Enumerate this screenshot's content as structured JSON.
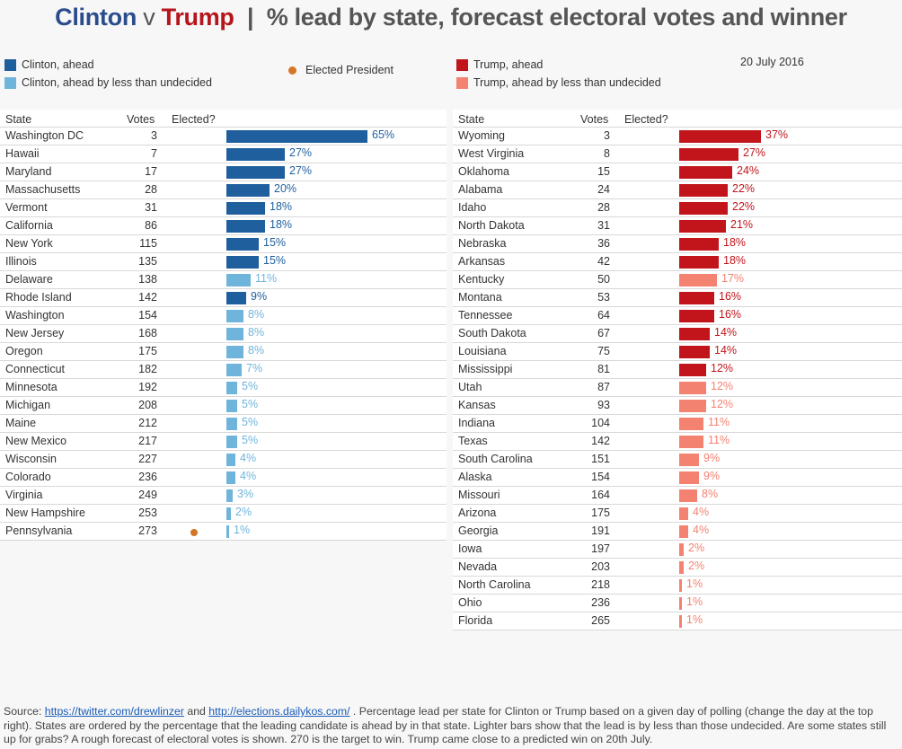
{
  "title": {
    "clinton": "Clinton",
    "v": " v ",
    "trump": "Trump",
    "rest": "  |  % lead by state, forecast electoral votes and winner"
  },
  "colors": {
    "clinton_ahead": "#1f5f9e",
    "clinton_light": "#6fb5db",
    "trump_ahead": "#c1151b",
    "trump_light": "#f48271",
    "elected": "#d47625"
  },
  "legend": {
    "clinton_ahead": "Clinton, ahead",
    "clinton_light": "Clinton, ahead by less than undecided",
    "elected": "Elected President",
    "trump_ahead": "Trump, ahead",
    "trump_light": "Trump, ahead by less than undecided"
  },
  "date": "20 July 2016",
  "headers": {
    "state": "State",
    "votes": "Votes",
    "elected": "Elected?"
  },
  "chart_data": [
    {
      "type": "bar",
      "title": "Clinton leads",
      "xlabel": "% lead",
      "series_color_key": "light = lead less than undecided",
      "rows": [
        {
          "state": "Washington DC",
          "votes": 3,
          "lead": 65,
          "light": false,
          "elected": false
        },
        {
          "state": "Hawaii",
          "votes": 7,
          "lead": 27,
          "light": false,
          "elected": false
        },
        {
          "state": "Maryland",
          "votes": 17,
          "lead": 27,
          "light": false,
          "elected": false
        },
        {
          "state": "Massachusetts",
          "votes": 28,
          "lead": 20,
          "light": false,
          "elected": false
        },
        {
          "state": "Vermont",
          "votes": 31,
          "lead": 18,
          "light": false,
          "elected": false
        },
        {
          "state": "California",
          "votes": 86,
          "lead": 18,
          "light": false,
          "elected": false
        },
        {
          "state": "New York",
          "votes": 115,
          "lead": 15,
          "light": false,
          "elected": false
        },
        {
          "state": "Illinois",
          "votes": 135,
          "lead": 15,
          "light": false,
          "elected": false
        },
        {
          "state": "Delaware",
          "votes": 138,
          "lead": 11,
          "light": true,
          "elected": false
        },
        {
          "state": "Rhode Island",
          "votes": 142,
          "lead": 9,
          "light": false,
          "elected": false
        },
        {
          "state": "Washington",
          "votes": 154,
          "lead": 8,
          "light": true,
          "elected": false
        },
        {
          "state": "New Jersey",
          "votes": 168,
          "lead": 8,
          "light": true,
          "elected": false
        },
        {
          "state": "Oregon",
          "votes": 175,
          "lead": 8,
          "light": true,
          "elected": false
        },
        {
          "state": "Connecticut",
          "votes": 182,
          "lead": 7,
          "light": true,
          "elected": false
        },
        {
          "state": "Minnesota",
          "votes": 192,
          "lead": 5,
          "light": true,
          "elected": false
        },
        {
          "state": "Michigan",
          "votes": 208,
          "lead": 5,
          "light": true,
          "elected": false
        },
        {
          "state": "Maine",
          "votes": 212,
          "lead": 5,
          "light": true,
          "elected": false
        },
        {
          "state": "New Mexico",
          "votes": 217,
          "lead": 5,
          "light": true,
          "elected": false
        },
        {
          "state": "Wisconsin",
          "votes": 227,
          "lead": 4,
          "light": true,
          "elected": false
        },
        {
          "state": "Colorado",
          "votes": 236,
          "lead": 4,
          "light": true,
          "elected": false
        },
        {
          "state": "Virginia",
          "votes": 249,
          "lead": 3,
          "light": true,
          "elected": false
        },
        {
          "state": "New Hampshire",
          "votes": 253,
          "lead": 2,
          "light": true,
          "elected": false
        },
        {
          "state": "Pennsylvania",
          "votes": 273,
          "lead": 1,
          "light": true,
          "elected": true
        }
      ]
    },
    {
      "type": "bar",
      "title": "Trump leads",
      "xlabel": "% lead",
      "rows": [
        {
          "state": "Wyoming",
          "votes": 3,
          "lead": 37,
          "light": false,
          "elected": false
        },
        {
          "state": "West Virginia",
          "votes": 8,
          "lead": 27,
          "light": false,
          "elected": false
        },
        {
          "state": "Oklahoma",
          "votes": 15,
          "lead": 24,
          "light": false,
          "elected": false
        },
        {
          "state": "Alabama",
          "votes": 24,
          "lead": 22,
          "light": false,
          "elected": false
        },
        {
          "state": "Idaho",
          "votes": 28,
          "lead": 22,
          "light": false,
          "elected": false
        },
        {
          "state": "North Dakota",
          "votes": 31,
          "lead": 21,
          "light": false,
          "elected": false
        },
        {
          "state": "Nebraska",
          "votes": 36,
          "lead": 18,
          "light": false,
          "elected": false
        },
        {
          "state": "Arkansas",
          "votes": 42,
          "lead": 18,
          "light": false,
          "elected": false
        },
        {
          "state": "Kentucky",
          "votes": 50,
          "lead": 17,
          "light": true,
          "elected": false
        },
        {
          "state": "Montana",
          "votes": 53,
          "lead": 16,
          "light": false,
          "elected": false
        },
        {
          "state": "Tennessee",
          "votes": 64,
          "lead": 16,
          "light": false,
          "elected": false
        },
        {
          "state": "South Dakota",
          "votes": 67,
          "lead": 14,
          "light": false,
          "elected": false
        },
        {
          "state": "Louisiana",
          "votes": 75,
          "lead": 14,
          "light": false,
          "elected": false
        },
        {
          "state": "Mississippi",
          "votes": 81,
          "lead": 12,
          "light": false,
          "elected": false
        },
        {
          "state": "Utah",
          "votes": 87,
          "lead": 12,
          "light": true,
          "elected": false
        },
        {
          "state": "Kansas",
          "votes": 93,
          "lead": 12,
          "light": true,
          "elected": false
        },
        {
          "state": "Indiana",
          "votes": 104,
          "lead": 11,
          "light": true,
          "elected": false
        },
        {
          "state": "Texas",
          "votes": 142,
          "lead": 11,
          "light": true,
          "elected": false
        },
        {
          "state": "South Carolina",
          "votes": 151,
          "lead": 9,
          "light": true,
          "elected": false
        },
        {
          "state": "Alaska",
          "votes": 154,
          "lead": 9,
          "light": true,
          "elected": false
        },
        {
          "state": "Missouri",
          "votes": 164,
          "lead": 8,
          "light": true,
          "elected": false
        },
        {
          "state": "Arizona",
          "votes": 175,
          "lead": 4,
          "light": true,
          "elected": false
        },
        {
          "state": "Georgia",
          "votes": 191,
          "lead": 4,
          "light": true,
          "elected": false
        },
        {
          "state": "Iowa",
          "votes": 197,
          "lead": 2,
          "light": true,
          "elected": false
        },
        {
          "state": "Nevada",
          "votes": 203,
          "lead": 2,
          "light": true,
          "elected": false
        },
        {
          "state": "North Carolina",
          "votes": 218,
          "lead": 1,
          "light": true,
          "elected": false
        },
        {
          "state": "Ohio",
          "votes": 236,
          "lead": 1,
          "light": true,
          "elected": false
        },
        {
          "state": "Florida",
          "votes": 265,
          "lead": 1,
          "light": true,
          "elected": false
        }
      ]
    }
  ],
  "footer": {
    "prefix": "Source: ",
    "link1": "https://twitter.com/drewlinzer",
    "and": " and ",
    "link2": "http://elections.dailykos.com/",
    "text": " . Percentage lead per state for Clinton or Trump based on a given day of polling (change the day at the top right). States are ordered by the percentage that the leading candidate is ahead by in that state. Lighter bars show that the lead is by less than those undecided. Are some states still up for grabs? A rough forecast of electoral votes is shown. 270 is the target to win. Trump came close to a predicted win on 20th July."
  }
}
